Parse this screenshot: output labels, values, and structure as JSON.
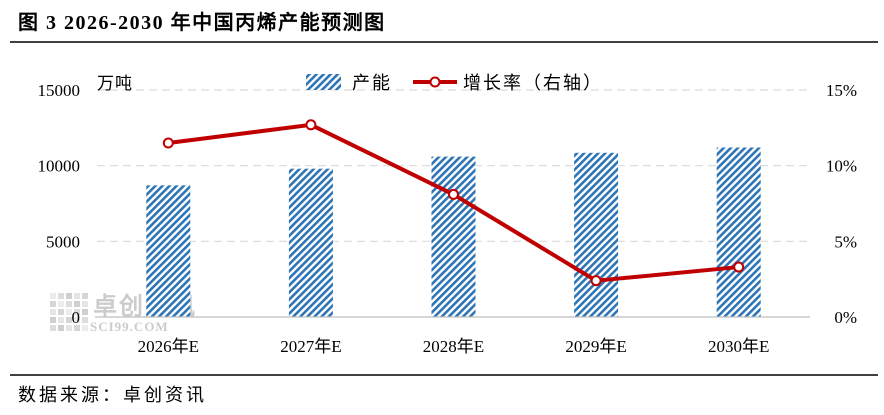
{
  "source": "数据来源：卓创资讯",
  "watermark": {
    "name": "卓创资讯",
    "domain": "SCI99.COM"
  },
  "colors": {
    "bar": "#2e75b6",
    "line": "#c00000",
    "grid": "#d9d9d9",
    "axis": "#bfbfbf",
    "watermark": "#c8c8c8"
  },
  "chart_data": {
    "type": "bar",
    "title": "图 3 2026-2030 年中国丙烯产能预测图",
    "categories": [
      "2026年E",
      "2027年E",
      "2028年E",
      "2029年E",
      "2030年E"
    ],
    "series": [
      {
        "name": "产能",
        "type": "bar",
        "axis": "left",
        "values": [
          8700,
          9800,
          10600,
          10850,
          11200
        ]
      },
      {
        "name": "增长率（右轴）",
        "type": "line",
        "axis": "right",
        "values": [
          11.5,
          12.7,
          8.1,
          2.4,
          3.3
        ]
      }
    ],
    "y_left": {
      "label": "万吨",
      "ylim": [
        0,
        15000
      ],
      "ticks": [
        0,
        5000,
        10000,
        15000
      ],
      "tick_labels": [
        "0",
        "5000",
        "10000",
        "15000"
      ]
    },
    "y_right": {
      "ylim": [
        0,
        15
      ],
      "ticks": [
        0,
        5,
        10,
        15
      ],
      "tick_labels": [
        "0%",
        "5%",
        "10%",
        "15%"
      ]
    },
    "grid": true,
    "legend": "top-center"
  }
}
